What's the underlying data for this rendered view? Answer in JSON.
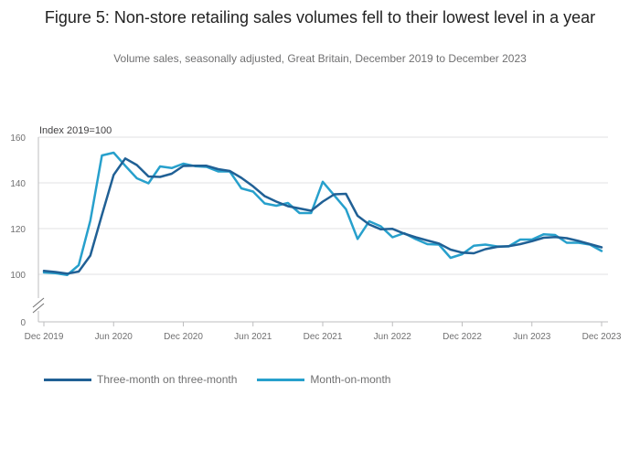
{
  "header": {
    "title": "Figure 5: Non-store retailing sales volumes fell to their lowest level in a year",
    "subtitle": "Volume sales, seasonally adjusted, Great Britain, December 2019 to December 2023"
  },
  "colors": {
    "series_1": "#206095",
    "series_2": "#27a0cc",
    "grid": "#e2e2e3",
    "axis": "#bebebf",
    "text": "#707071"
  },
  "chart_data": {
    "type": "line",
    "y_unit_label": "Index 2019=100",
    "ylim": [
      0,
      160
    ],
    "y_ticks": [
      0,
      100,
      120,
      140,
      160
    ],
    "axis_break": true,
    "x_start": "Dec 2019",
    "x_ticks": [
      {
        "month_index": 0,
        "label": "Dec 2019"
      },
      {
        "month_index": 6,
        "label": "Jun 2020"
      },
      {
        "month_index": 12,
        "label": "Dec 2020"
      },
      {
        "month_index": 18,
        "label": "Jun 2021"
      },
      {
        "month_index": 24,
        "label": "Dec 2021"
      },
      {
        "month_index": 30,
        "label": "Jun 2022"
      },
      {
        "month_index": 36,
        "label": "Dec 2022"
      },
      {
        "month_index": 42,
        "label": "Jun 2023"
      },
      {
        "month_index": 48,
        "label": "Dec 2023"
      }
    ],
    "series": [
      {
        "name": "Three-month on three-month",
        "color": "#206095",
        "values": [
          101.5,
          101.0,
          100.3,
          101.2,
          108.2,
          126.0,
          143.5,
          150.7,
          147.8,
          142.8,
          142.6,
          144.0,
          147.4,
          147.5,
          147.5,
          146.0,
          145.2,
          142.2,
          138.5,
          134.2,
          131.8,
          129.8,
          128.8,
          127.8,
          131.8,
          135.0,
          135.2,
          125.6,
          121.8,
          119.7,
          119.9,
          117.8,
          116.2,
          114.8,
          113.5,
          110.8,
          109.5,
          109.2,
          111.0,
          112.0,
          112.3,
          113.2,
          114.5,
          116.0,
          116.3,
          115.8,
          114.6,
          113.2,
          111.8
        ]
      },
      {
        "name": "Month-on-month",
        "color": "#27a0cc",
        "values": [
          100.8,
          100.5,
          99.7,
          104.0,
          123.5,
          152.0,
          153.2,
          147.5,
          142.0,
          139.8,
          147.2,
          146.5,
          148.4,
          147.3,
          147.0,
          145.0,
          145.0,
          137.6,
          136.2,
          131.0,
          130.0,
          131.2,
          126.8,
          126.8,
          140.5,
          134.5,
          128.5,
          115.5,
          123.2,
          121.0,
          116.2,
          118.0,
          115.4,
          113.2,
          113.0,
          107.2,
          108.8,
          112.5,
          113.0,
          112.2,
          112.2,
          115.2,
          115.2,
          117.5,
          117.2,
          113.8,
          113.8,
          113.0,
          110.2
        ]
      }
    ]
  }
}
